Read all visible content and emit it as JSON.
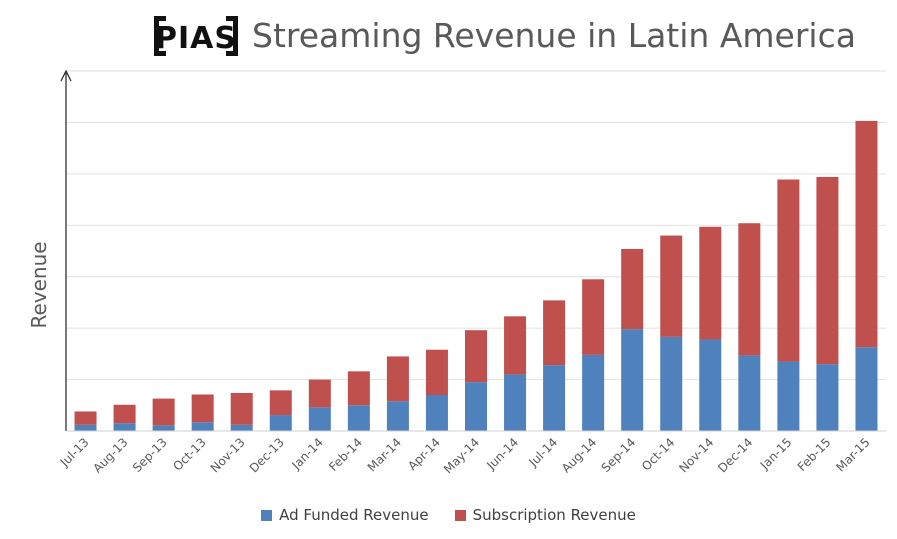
{
  "header": {
    "logo_text": "PIAS",
    "title": "Streaming Revenue in Latin America"
  },
  "chart_data": {
    "type": "bar",
    "stacked": true,
    "title": "Streaming Revenue in Latin America",
    "xlabel": "",
    "ylabel": "Revenue",
    "y_tick_labels_shown": false,
    "ylim": [
      0,
      70
    ],
    "grid": true,
    "legend_position": "bottom",
    "categories": [
      "Jul-13",
      "Aug-13",
      "Sep-13",
      "Oct-13",
      "Nov-13",
      "Dec-13",
      "Jan-14",
      "Feb-14",
      "Mar-14",
      "Apr-14",
      "May-14",
      "Jun-14",
      "Jul-14",
      "Aug-14",
      "Sep-14",
      "Oct-14",
      "Nov-14",
      "Dec-14",
      "Jan-15",
      "Feb-15",
      "Mar-15"
    ],
    "series": [
      {
        "name": "Ad Funded Revenue",
        "color": "#4F81BD",
        "values": [
          1.2,
          1.5,
          1.1,
          1.7,
          1.2,
          3.1,
          4.6,
          5.0,
          5.8,
          7.0,
          9.5,
          11.0,
          12.8,
          14.8,
          19.8,
          18.3,
          17.8,
          14.7,
          13.5,
          13.0,
          16.3
        ]
      },
      {
        "name": "Subscription Revenue",
        "color": "#C0504D",
        "values": [
          2.6,
          3.6,
          5.2,
          5.4,
          6.2,
          4.8,
          5.4,
          6.6,
          8.7,
          8.8,
          10.1,
          11.3,
          12.6,
          14.7,
          15.6,
          19.7,
          21.9,
          25.7,
          35.4,
          36.4,
          44.0
        ]
      }
    ]
  },
  "legend": {
    "items": [
      {
        "label": "Ad Funded Revenue",
        "color": "#4F81BD"
      },
      {
        "label": "Subscription Revenue",
        "color": "#C0504D"
      }
    ]
  }
}
